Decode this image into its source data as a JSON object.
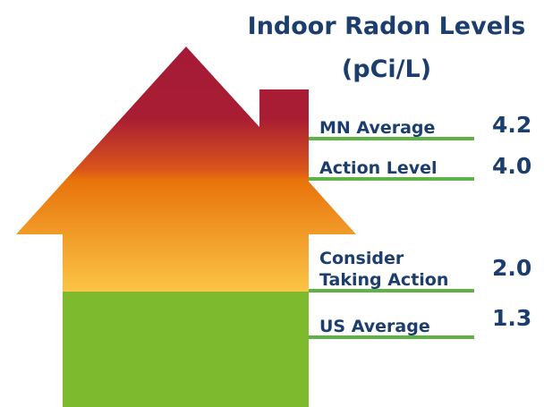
{
  "title": "Indoor Radon Levels",
  "unit": "(pCi/L)",
  "levels": [
    {
      "label": [
        "MN Average"
      ],
      "value": "4.2"
    },
    {
      "label": [
        "Action Level"
      ],
      "value": "4.0"
    },
    {
      "label": [
        "Consider",
        "Taking Action"
      ],
      "value": "2.0"
    },
    {
      "label": [
        "US Average"
      ],
      "value": "1.3"
    }
  ]
}
